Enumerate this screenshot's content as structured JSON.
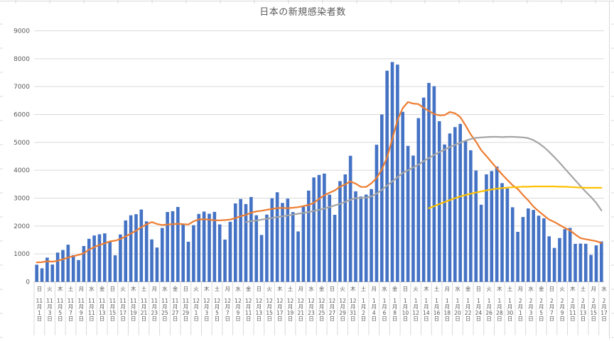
{
  "chart_data": {
    "type": "bar",
    "title": "日本の新規感染者数",
    "xlabel": "",
    "ylabel": "",
    "ylim": [
      0,
      9000
    ],
    "yticks": [
      0,
      1000,
      2000,
      3000,
      4000,
      5000,
      6000,
      7000,
      8000,
      9000
    ],
    "grid": true,
    "legend_position": "none",
    "x_tick_interval_days": 2,
    "text_color": "#595959",
    "grid_color": "#d9d9d9",
    "axis_color": "#bfbfbf",
    "tick_labels": [
      {
        "w": "日",
        "d": "11月1日"
      },
      {
        "w": "火",
        "d": "11月3日"
      },
      {
        "w": "木",
        "d": "11月5日"
      },
      {
        "w": "土",
        "d": "11月7日"
      },
      {
        "w": "月",
        "d": "11月9日"
      },
      {
        "w": "水",
        "d": "11月11日"
      },
      {
        "w": "金",
        "d": "11月13日"
      },
      {
        "w": "日",
        "d": "11月15日"
      },
      {
        "w": "火",
        "d": "11月17日"
      },
      {
        "w": "木",
        "d": "11月19日"
      },
      {
        "w": "土",
        "d": "11月21日"
      },
      {
        "w": "月",
        "d": "11月23日"
      },
      {
        "w": "水",
        "d": "11月25日"
      },
      {
        "w": "金",
        "d": "11月27日"
      },
      {
        "w": "日",
        "d": "11月29日"
      },
      {
        "w": "火",
        "d": "12月1日"
      },
      {
        "w": "木",
        "d": "12月3日"
      },
      {
        "w": "土",
        "d": "12月5日"
      },
      {
        "w": "月",
        "d": "12月7日"
      },
      {
        "w": "水",
        "d": "12月9日"
      },
      {
        "w": "金",
        "d": "12月11日"
      },
      {
        "w": "日",
        "d": "12月13日"
      },
      {
        "w": "火",
        "d": "12月15日"
      },
      {
        "w": "木",
        "d": "12月17日"
      },
      {
        "w": "土",
        "d": "12月19日"
      },
      {
        "w": "月",
        "d": "12月21日"
      },
      {
        "w": "水",
        "d": "12月23日"
      },
      {
        "w": "金",
        "d": "12月25日"
      },
      {
        "w": "日",
        "d": "12月27日"
      },
      {
        "w": "火",
        "d": "12月29日"
      },
      {
        "w": "木",
        "d": "12月31日"
      },
      {
        "w": "土",
        "d": "1月2日"
      },
      {
        "w": "月",
        "d": "1月4日"
      },
      {
        "w": "水",
        "d": "1月6日"
      },
      {
        "w": "金",
        "d": "1月8日"
      },
      {
        "w": "日",
        "d": "1月10日"
      },
      {
        "w": "火",
        "d": "1月12日"
      },
      {
        "w": "木",
        "d": "1月14日"
      },
      {
        "w": "土",
        "d": "1月16日"
      },
      {
        "w": "月",
        "d": "1月18日"
      },
      {
        "w": "水",
        "d": "1月20日"
      },
      {
        "w": "金",
        "d": "1月22日"
      },
      {
        "w": "日",
        "d": "1月24日"
      },
      {
        "w": "火",
        "d": "1月26日"
      },
      {
        "w": "木",
        "d": "1月28日"
      },
      {
        "w": "土",
        "d": "1月30日"
      },
      {
        "w": "月",
        "d": "2月1日"
      },
      {
        "w": "水",
        "d": "2月3日"
      },
      {
        "w": "金",
        "d": "2月5日"
      },
      {
        "w": "日",
        "d": "2月7日"
      },
      {
        "w": "火",
        "d": "2月9日"
      },
      {
        "w": "木",
        "d": "2月11日"
      },
      {
        "w": "土",
        "d": "2月13日"
      },
      {
        "w": "月",
        "d": "2月15日"
      },
      {
        "w": "水",
        "d": "2月17日"
      }
    ],
    "series": [
      {
        "name": "daily-new-cases",
        "type": "bar",
        "color": "#4472c4",
        "start_index": 0,
        "values": [
          614,
          484,
          867,
          620,
          1048,
          1141,
          1331,
          957,
          780,
          1284,
          1543,
          1661,
          1704,
          1737,
          1441,
          950,
          1699,
          2201,
          2386,
          2425,
          2592,
          2168,
          1521,
          1229,
          1930,
          2504,
          2531,
          2684,
          2066,
          1438,
          2030,
          2434,
          2518,
          2442,
          2508,
          2058,
          1515,
          2152,
          2811,
          2971,
          2788,
          3041,
          2387,
          1680,
          2410,
          2994,
          3211,
          2829,
          2982,
          2501,
          1806,
          2688,
          3271,
          3742,
          3832,
          3881,
          3124,
          2403,
          3610,
          3852,
          4520,
          3246,
          3058,
          3127,
          3325,
          4915,
          6001,
          7570,
          7882,
          7790,
          6097,
          4876,
          4527,
          5870,
          6607,
          7133,
          7014,
          5759,
          4925,
          5320,
          5548,
          5663,
          5045,
          4717,
          3990,
          2764,
          3853,
          3971,
          4133,
          3539,
          3344,
          2674,
          1792,
          2324,
          2631,
          2577,
          2372,
          2277,
          1632,
          1216,
          1570,
          1887,
          1933,
          1362,
          1371,
          1364,
          965,
          1307,
          1448
        ]
      },
      {
        "name": "orange-line-7day-average",
        "type": "line",
        "color": "#ed7d31",
        "start_index": 0,
        "values": [
          694,
          705,
          737,
          721,
          755,
          807,
          872,
          921,
          963,
          1023,
          1155,
          1242,
          1323,
          1381,
          1450,
          1474,
          1534,
          1628,
          1731,
          1834,
          1956,
          2060,
          2142,
          2075,
          2036,
          2053,
          2068,
          2081,
          2066,
          2055,
          2169,
          2241,
          2243,
          2230,
          2205,
          2204,
          2215,
          2232,
          2286,
          2351,
          2400,
          2477,
          2524,
          2547,
          2584,
          2610,
          2644,
          2650,
          2642,
          2658,
          2676,
          2716,
          2755,
          2831,
          2975,
          3103,
          3192,
          3277,
          3409,
          3492,
          3603,
          3519,
          3402,
          3402,
          3534,
          3720,
          4027,
          4463,
          5125,
          5801,
          6226,
          6447,
          6392,
          6373,
          6236,
          6129,
          6018,
          5969,
          5976,
          6090,
          6044,
          5909,
          5611,
          5282,
          5030,
          4721,
          4511,
          4286,
          4068,
          3852,
          3656,
          3468,
          3329,
          3111,
          2920,
          2697,
          2531,
          2378,
          2229,
          2147,
          2039,
          1933,
          1841,
          1697,
          1567,
          1529,
          1493,
          1456,
          1393
        ]
      },
      {
        "name": "gray-line",
        "type": "line",
        "color": "#a5a5a5",
        "start_index": 40,
        "values": [
          2140,
          2170,
          2200,
          2230,
          2260,
          2290,
          2320,
          2350,
          2380,
          2410,
          2440,
          2470,
          2500,
          2540,
          2580,
          2630,
          2680,
          2740,
          2800,
          2870,
          2940,
          3000,
          3010,
          3020,
          3060,
          3160,
          3300,
          3450,
          3600,
          3750,
          3900,
          4000,
          4100,
          4200,
          4330,
          4440,
          4550,
          4650,
          4740,
          4830,
          4910,
          4990,
          5060,
          5120,
          5160,
          5180,
          5190,
          5200,
          5200,
          5190,
          5200,
          5200,
          5190,
          5180,
          5150,
          5080,
          4970,
          4830,
          4660,
          4470,
          4270,
          4060,
          3850,
          3640,
          3430,
          3230,
          3040,
          2830,
          2560
        ]
      },
      {
        "name": "yellow-line",
        "type": "line",
        "color": "#ffc000",
        "start_index": 75,
        "values": [
          2640,
          2710,
          2790,
          2860,
          2930,
          3000,
          3060,
          3110,
          3160,
          3200,
          3240,
          3280,
          3310,
          3340,
          3360,
          3380,
          3390,
          3400,
          3410,
          3410,
          3420,
          3420,
          3420,
          3420,
          3420,
          3410,
          3410,
          3400,
          3390,
          3380,
          3370,
          3370,
          3370,
          3370
        ]
      }
    ]
  }
}
